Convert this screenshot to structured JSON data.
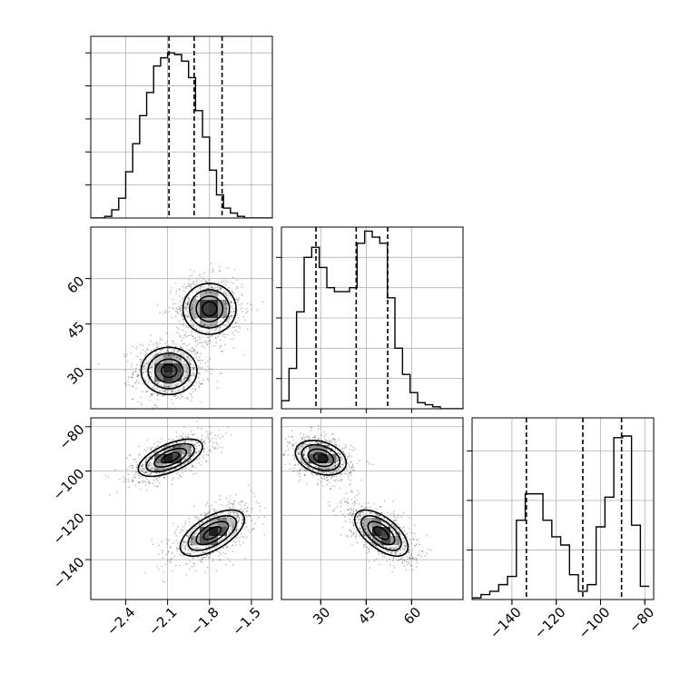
{
  "chart_data": {
    "type": "corner",
    "parameters": [
      {
        "range": [
          -2.65,
          -1.35
        ],
        "ticks": [
          -2.4,
          -2.1,
          -1.8,
          -1.5
        ],
        "tick_labels": [
          "−2.4",
          "−2.1",
          "−1.8",
          "−1.5"
        ]
      },
      {
        "range": [
          17,
          77
        ],
        "ticks": [
          30,
          45,
          60
        ],
        "tick_labels": [
          "30",
          "45",
          "60"
        ]
      },
      {
        "range": [
          -158,
          -76
        ],
        "ticks": [
          -140,
          -120,
          -100,
          -80
        ],
        "tick_labels": [
          "−140",
          "−120",
          "−100",
          "−80"
        ]
      }
    ],
    "histograms": [
      {
        "edges": [
          -2.65,
          -2.6,
          -2.55,
          -2.5,
          -2.45,
          -2.4,
          -2.35,
          -2.3,
          -2.25,
          -2.2,
          -2.15,
          -2.1,
          -2.05,
          -2.0,
          -1.95,
          -1.9,
          -1.85,
          -1.8,
          -1.75,
          -1.7,
          -1.65,
          -1.6,
          -1.55,
          -1.5,
          -1.45,
          -1.4,
          -1.35
        ],
        "counts": [
          0,
          0,
          0.01,
          0.05,
          0.12,
          0.28,
          0.45,
          0.62,
          0.76,
          0.92,
          0.97,
          1.0,
          0.99,
          0.95,
          0.85,
          0.65,
          0.49,
          0.29,
          0.14,
          0.06,
          0.03,
          0.01,
          0,
          0,
          0,
          0
        ],
        "quantiles": [
          -2.09,
          -1.91,
          -1.71
        ],
        "ylim": [
          0,
          1.1
        ],
        "gridlines": [
          0.2,
          0.4,
          0.6,
          0.8,
          1.0
        ]
      },
      {
        "edges": [
          17,
          19.5,
          22,
          24.5,
          27,
          29.5,
          32,
          34.5,
          37,
          39.5,
          42,
          44.5,
          47,
          49.5,
          52,
          54.5,
          57,
          59.5,
          62,
          64.5,
          67,
          69.5,
          72,
          74.5,
          77
        ],
        "counts": [
          0.04,
          0.2,
          0.48,
          0.75,
          0.8,
          0.7,
          0.6,
          0.58,
          0.58,
          0.6,
          0.82,
          0.88,
          0.85,
          0.82,
          0.55,
          0.3,
          0.17,
          0.08,
          0.03,
          0.02,
          0.01,
          0,
          0,
          0
        ],
        "quantiles": [
          28.4,
          41.7,
          52.1
        ],
        "ylim": [
          0,
          0.9
        ],
        "gridlines": [
          0.15,
          0.3,
          0.45,
          0.6,
          0.75
        ]
      },
      {
        "edges": [
          -158,
          -154,
          -150,
          -146,
          -142,
          -138,
          -134,
          -130,
          -126,
          -122,
          -118,
          -114,
          -110,
          -106,
          -102,
          -98,
          -94,
          -90,
          -86,
          -82,
          -78
        ],
        "counts": [
          0.01,
          0.03,
          0.05,
          0.09,
          0.14,
          0.48,
          0.64,
          0.64,
          0.48,
          0.38,
          0.33,
          0.15,
          0.05,
          0.09,
          0.44,
          0.62,
          0.98,
          0.99,
          0.45,
          0.08
        ],
        "quantiles": [
          -133.5,
          -108,
          -90.5
        ],
        "ylim": [
          0,
          1.1
        ],
        "gridlines": [
          0.3,
          0.6,
          0.9
        ]
      }
    ],
    "scatter_pairs": [
      {
        "x_param": 0,
        "y_param": 1,
        "modes": [
          {
            "center": [
              -2.09,
              29.5
            ],
            "sd": [
              0.1,
              3.9
            ],
            "rho": 0,
            "n": 3600
          },
          {
            "center": [
              -1.8,
              50
            ],
            "sd": [
              0.095,
              4.2
            ],
            "rho": 0,
            "n": 3600
          }
        ],
        "grid_gray": 0.88
      },
      {
        "x_param": 0,
        "y_param": 2,
        "modes": [
          {
            "center": [
              -2.08,
              -94
            ],
            "sd": [
              0.115,
              4.2
            ],
            "rho": 0.6,
            "n": 3600
          },
          {
            "center": [
              -1.78,
              -128
            ],
            "sd": [
              0.115,
              5.2
            ],
            "rho": 0.6,
            "n": 3600
          }
        ],
        "grid_gray": 0.88
      },
      {
        "x_param": 1,
        "y_param": 2,
        "modes": [
          {
            "center": [
              30,
              -94
            ],
            "sd": [
              4.2,
              3.9
            ],
            "rho": -0.3,
            "n": 3600
          },
          {
            "center": [
              50,
              -128
            ],
            "sd": [
              4.4,
              5.2
            ],
            "rho": -0.6,
            "n": 3600
          }
        ],
        "grid_gray": 0.88
      }
    ]
  }
}
